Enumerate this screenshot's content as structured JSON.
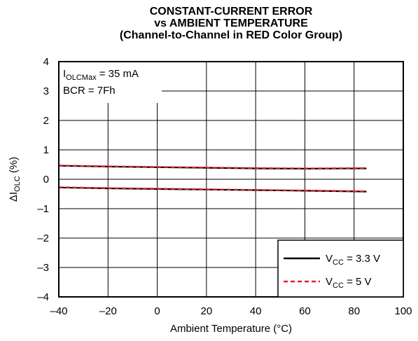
{
  "chart_data": {
    "type": "line",
    "title_lines": [
      "CONSTANT-CURRENT ERROR",
      "vs AMBIENT TEMPERATURE",
      "(Channel-to-Channel in RED Color Group)"
    ],
    "xlabel": "Ambient Temperature (°C)",
    "ylabel": {
      "main": "ΔI",
      "sub": "OLC",
      "suffix": " (%)"
    },
    "xlim": [
      -40,
      100
    ],
    "ylim": [
      -4,
      4
    ],
    "xticks": [
      -40,
      -20,
      0,
      20,
      40,
      60,
      80,
      100
    ],
    "yticks": [
      -4,
      -3,
      -2,
      -1,
      0,
      1,
      2,
      3,
      4
    ],
    "xtick_labels": [
      "–40",
      "–20",
      "0",
      "20",
      "40",
      "60",
      "80",
      "100"
    ],
    "ytick_labels": [
      "–4",
      "–3",
      "–2",
      "–1",
      "0",
      "1",
      "2",
      "3",
      "4"
    ],
    "grid": true,
    "annotations": [
      {
        "main": "I",
        "sub": "OLCMax",
        "suffix": " = 35 mA"
      },
      {
        "main": "BCR = 7Fh",
        "sub": "",
        "suffix": ""
      }
    ],
    "legend_position": "bottom-right",
    "legend": [
      {
        "main": "V",
        "sub": "CC",
        "suffix": " = 3.3 V",
        "color": "#000000",
        "dash": ""
      },
      {
        "main": "V",
        "sub": "CC",
        "suffix": " = 5 V",
        "color": "#e8202a",
        "dash": "6 4"
      }
    ],
    "series": [
      {
        "legend_index": 0,
        "color": "#000000",
        "dash": "",
        "x": [
          -40,
          -20,
          0,
          20,
          40,
          60,
          85
        ],
        "y": [
          0.46,
          0.43,
          0.41,
          0.39,
          0.37,
          0.36,
          0.37
        ]
      },
      {
        "legend_index": 0,
        "color": "#000000",
        "dash": "",
        "x": [
          -40,
          -20,
          0,
          20,
          40,
          60,
          85
        ],
        "y": [
          -0.28,
          -0.31,
          -0.33,
          -0.35,
          -0.37,
          -0.39,
          -0.42
        ]
      },
      {
        "legend_index": 1,
        "color": "#e8202a",
        "dash": "6 4",
        "x": [
          -40,
          -20,
          0,
          20,
          40,
          60,
          85
        ],
        "y": [
          0.47,
          0.44,
          0.42,
          0.4,
          0.38,
          0.37,
          0.38
        ]
      },
      {
        "legend_index": 1,
        "color": "#e8202a",
        "dash": "6 4",
        "x": [
          -40,
          -20,
          0,
          20,
          40,
          60,
          85
        ],
        "y": [
          -0.27,
          -0.3,
          -0.32,
          -0.34,
          -0.36,
          -0.38,
          -0.41
        ]
      }
    ]
  }
}
